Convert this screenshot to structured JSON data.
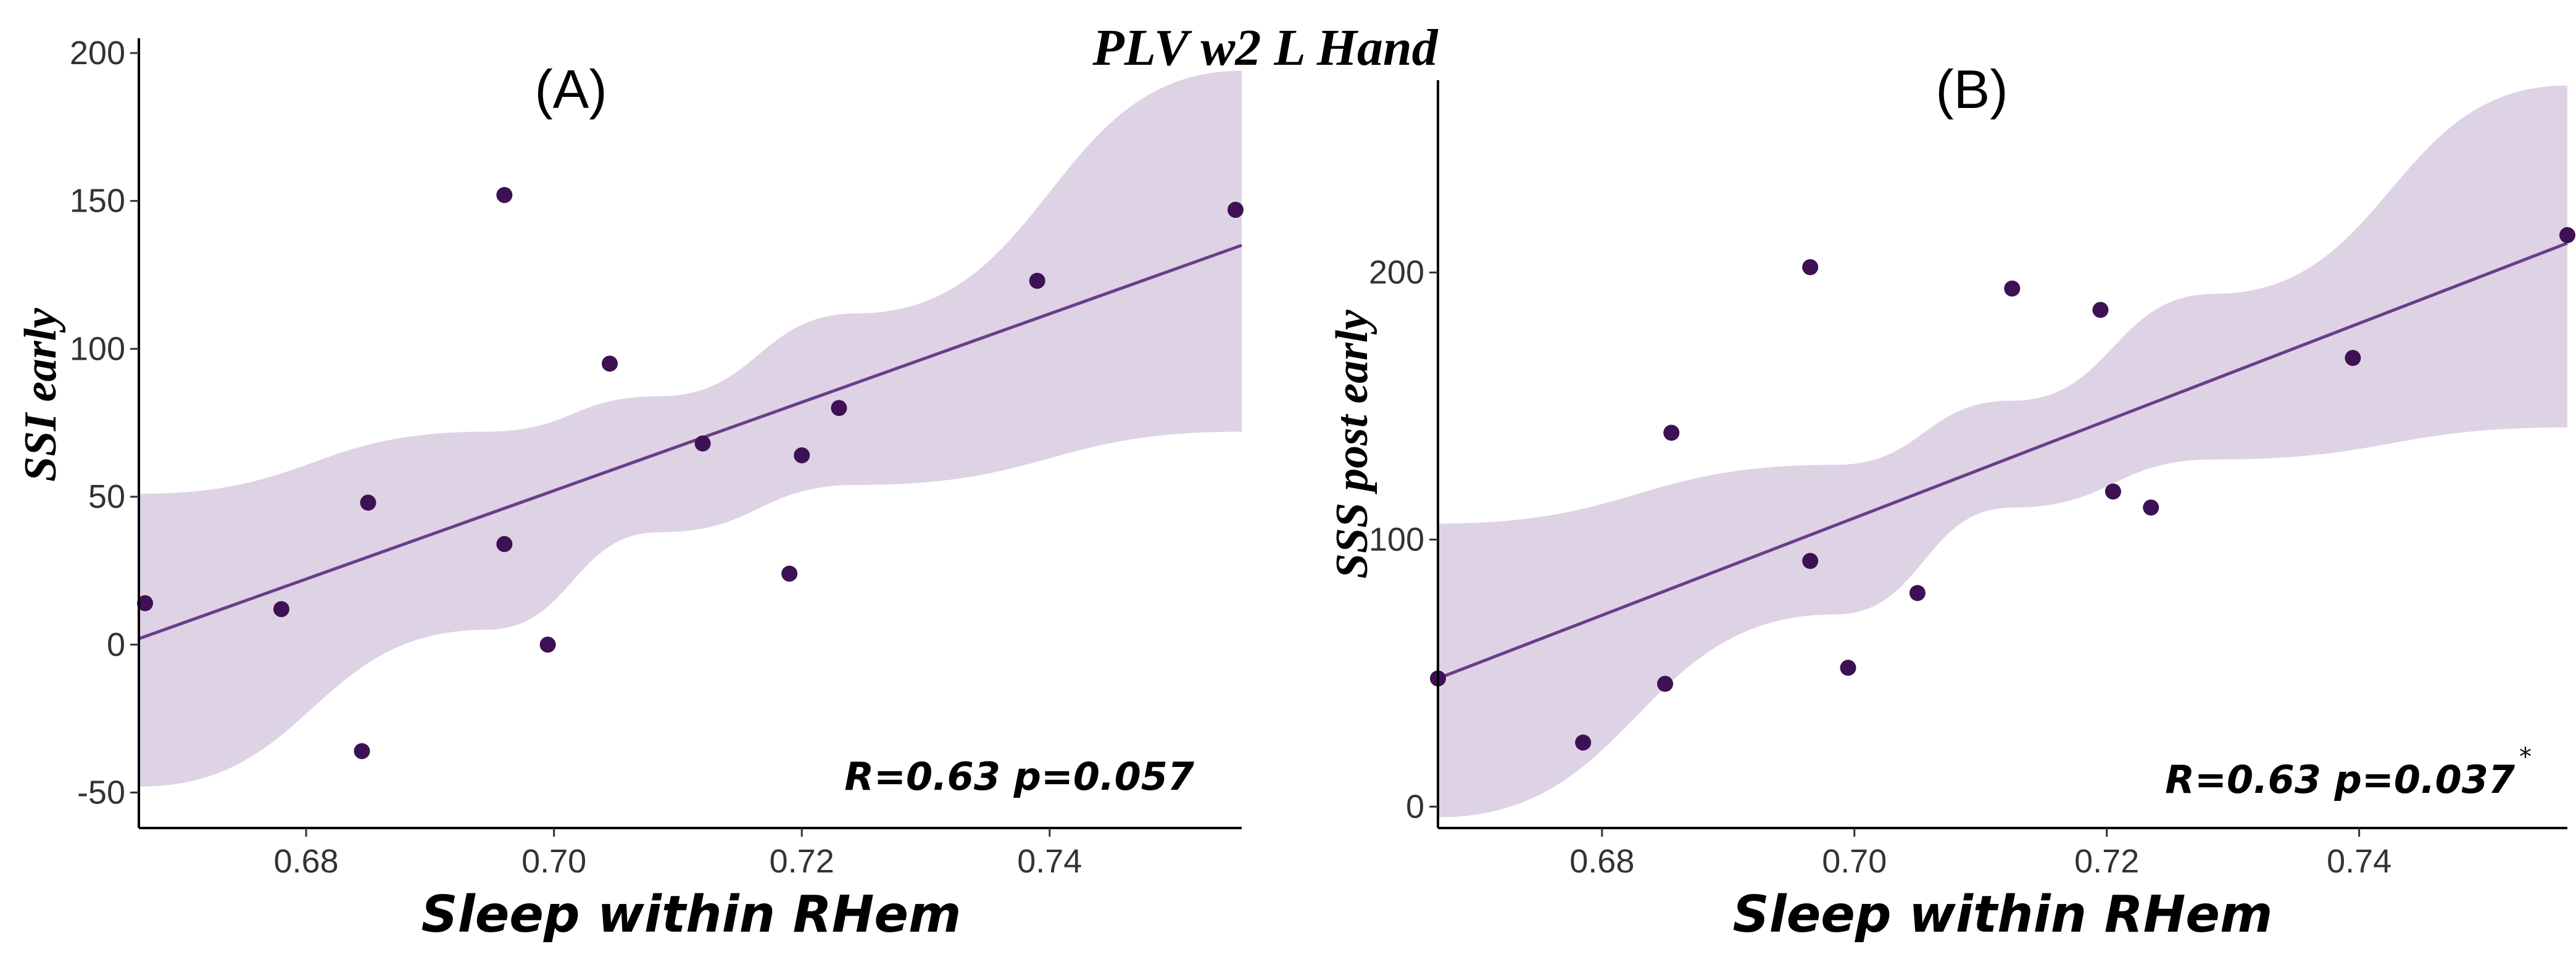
{
  "title": "PLV  w2  L Hand",
  "colors": {
    "point": "#3d1154",
    "line": "#6a3d88",
    "band": "#ddd3e4"
  },
  "chart_data": [
    {
      "type": "scatter",
      "panel_label": "(A)",
      "xlabel": "Sleep within RHem",
      "ylabel": "SSI early",
      "xlim": [
        0.6665,
        0.7555
      ],
      "ylim": [
        -62,
        205
      ],
      "xticks": [
        0.68,
        0.7,
        0.72,
        0.74
      ],
      "xtick_labels": [
        "0.68",
        "0.70",
        "0.72",
        "0.74"
      ],
      "yticks": [
        -50,
        0,
        50,
        100,
        150,
        200
      ],
      "ytick_labels": [
        "-50",
        "0",
        "50",
        "100",
        "150",
        "200"
      ],
      "points": [
        {
          "x": 0.667,
          "y": 14
        },
        {
          "x": 0.678,
          "y": 12
        },
        {
          "x": 0.6845,
          "y": -36
        },
        {
          "x": 0.685,
          "y": 48
        },
        {
          "x": 0.696,
          "y": 152
        },
        {
          "x": 0.696,
          "y": 34
        },
        {
          "x": 0.6995,
          "y": 0
        },
        {
          "x": 0.7045,
          "y": 95
        },
        {
          "x": 0.712,
          "y": 68
        },
        {
          "x": 0.719,
          "y": 24
        },
        {
          "x": 0.72,
          "y": 64
        },
        {
          "x": 0.723,
          "y": 80
        },
        {
          "x": 0.739,
          "y": 123
        },
        {
          "x": 0.755,
          "y": 147
        }
      ],
      "fit": {
        "x": [
          0.6665,
          0.7555
        ],
        "y": [
          2,
          135
        ]
      },
      "ci_band": {
        "x": [
          0.6665,
          0.6945,
          0.7085,
          0.7245,
          0.7555
        ],
        "lower": [
          -48,
          5,
          38,
          54,
          72
        ],
        "upper": [
          51,
          72,
          84,
          112,
          194
        ]
      },
      "annotation": "R=0.63 p=0.057",
      "annotation_mark": ""
    },
    {
      "type": "scatter",
      "panel_label": "(B)",
      "xlabel": "Sleep within RHem",
      "ylabel": "SSS post early",
      "xlim": [
        0.667,
        0.7565
      ],
      "ylim": [
        -8,
        272
      ],
      "xticks": [
        0.68,
        0.7,
        0.72,
        0.74
      ],
      "xtick_labels": [
        "0.68",
        "0.70",
        "0.72",
        "0.74"
      ],
      "yticks": [
        0,
        100,
        200
      ],
      "ytick_labels": [
        "0",
        "100",
        "200"
      ],
      "points": [
        {
          "x": 0.667,
          "y": 48
        },
        {
          "x": 0.6785,
          "y": 24
        },
        {
          "x": 0.685,
          "y": 46
        },
        {
          "x": 0.6855,
          "y": 140
        },
        {
          "x": 0.6965,
          "y": 92
        },
        {
          "x": 0.6965,
          "y": 202
        },
        {
          "x": 0.6995,
          "y": 52
        },
        {
          "x": 0.705,
          "y": 80
        },
        {
          "x": 0.7125,
          "y": 194
        },
        {
          "x": 0.7195,
          "y": 186
        },
        {
          "x": 0.7205,
          "y": 118
        },
        {
          "x": 0.7235,
          "y": 112
        },
        {
          "x": 0.7395,
          "y": 168
        },
        {
          "x": 0.7565,
          "y": 214
        }
      ],
      "fit": {
        "x": [
          0.667,
          0.7565
        ],
        "y": [
          48,
          211
        ]
      },
      "ci_band": {
        "x": [
          0.667,
          0.6985,
          0.7125,
          0.7285,
          0.7565
        ],
        "lower": [
          -4,
          72,
          112,
          130,
          142
        ],
        "upper": [
          106,
          128,
          152,
          192,
          270
        ]
      },
      "annotation": "R=0.63 p=0.037",
      "annotation_mark": "*"
    }
  ]
}
